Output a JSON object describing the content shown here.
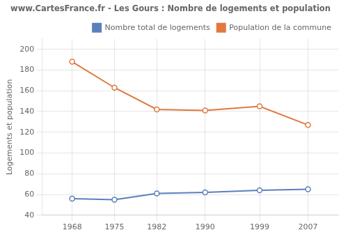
{
  "chart_data": {
    "type": "line",
    "title": "www.CartesFrance.fr - Les Gours : Nombre de logements et population",
    "ylabel": "Logements et population",
    "x": [
      1968,
      1975,
      1982,
      1990,
      1999,
      2007
    ],
    "series": [
      {
        "name": "Nombre total de logements",
        "color": "#5b7fbc",
        "marker": "circle",
        "values": [
          56,
          55,
          61,
          62,
          64,
          65
        ]
      },
      {
        "name": "Population de la commune",
        "color": "#e07840",
        "marker": "circle",
        "values": [
          188,
          163,
          142,
          141,
          145,
          127
        ]
      }
    ],
    "xlim": [
      1963,
      2012
    ],
    "xticks": [
      1968,
      1975,
      1982,
      1990,
      1999,
      2007
    ],
    "ylim": [
      40,
      210
    ],
    "yticks": [
      40,
      60,
      80,
      100,
      120,
      140,
      160,
      180,
      200
    ],
    "grid": true,
    "legend": "upper right"
  }
}
